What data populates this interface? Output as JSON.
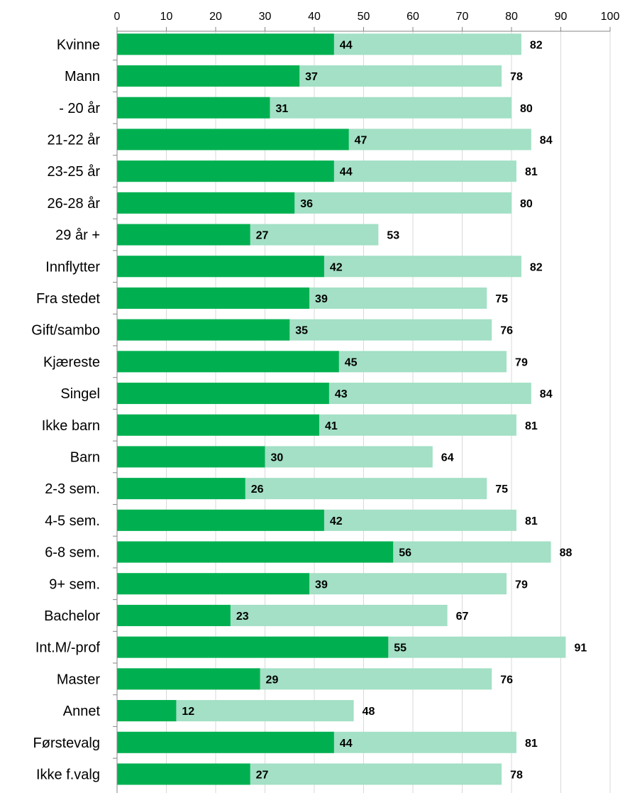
{
  "chart_data": {
    "type": "bar",
    "orientation": "horizontal",
    "stacked_overlay": true,
    "categories": [
      "Kvinne",
      "Mann",
      "- 20 år",
      "21-22 år",
      "23-25 år",
      "26-28 år",
      "29 år +",
      "Innflytter",
      "Fra stedet",
      "Gift/sambo",
      "Kjæreste",
      "Singel",
      "Ikke barn",
      "Barn",
      "2-3 sem.",
      "4-5 sem.",
      "6-8 sem.",
      "9+ sem.",
      "Bachelor",
      "Int.M/-prof",
      "Master",
      "Annet",
      "Førstevalg",
      "Ikke f.valg"
    ],
    "series": [
      {
        "values": [
          44,
          37,
          31,
          47,
          44,
          36,
          27,
          42,
          39,
          35,
          45,
          43,
          41,
          30,
          26,
          42,
          56,
          39,
          23,
          55,
          29,
          12,
          44,
          27
        ],
        "color": "#00b050"
      },
      {
        "values": [
          82,
          78,
          80,
          84,
          81,
          80,
          53,
          82,
          75,
          76,
          79,
          84,
          81,
          64,
          75,
          81,
          88,
          79,
          67,
          91,
          76,
          48,
          81,
          78
        ],
        "color": "#a3e0c5"
      }
    ],
    "value_labels": {
      "inner": [
        "44",
        "37",
        "31",
        "47",
        "44",
        "36",
        "27",
        "42",
        "39",
        "35",
        "45",
        "43",
        "41",
        "30",
        "26",
        "42",
        "56",
        "39",
        "23",
        "55",
        "29",
        "12",
        "44",
        "27"
      ],
      "outer": [
        "82",
        "78",
        "80",
        "84",
        "81",
        "80",
        "53",
        "82",
        "75",
        "76",
        "79",
        "84",
        "81",
        "64",
        "75",
        "81",
        "88",
        "79",
        "67",
        "91",
        "76",
        "48",
        "81",
        "78"
      ]
    },
    "xlim": [
      0,
      100
    ],
    "xticks": [
      0,
      10,
      20,
      30,
      40,
      50,
      60,
      70,
      80,
      90,
      100
    ],
    "xtick_labels": [
      "0",
      "10",
      "20",
      "30",
      "40",
      "50",
      "60",
      "70",
      "80",
      "90",
      "100"
    ],
    "axis_position": "top",
    "grid": true,
    "legend": "none",
    "title": "",
    "xlabel": "",
    "ylabel": ""
  }
}
